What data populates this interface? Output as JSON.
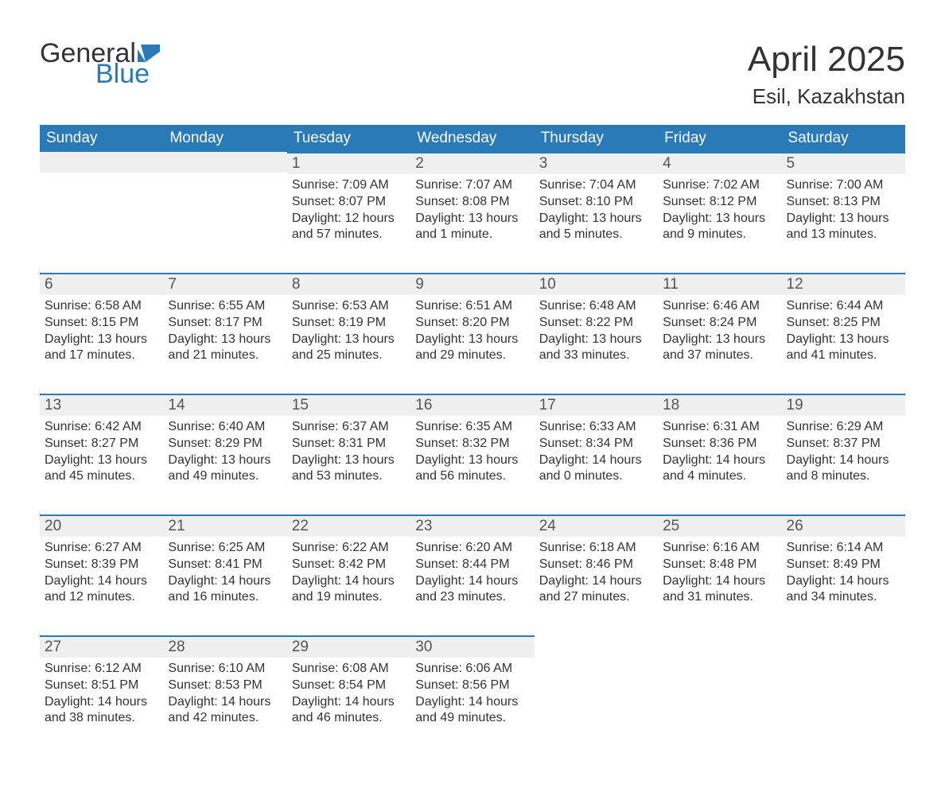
{
  "logo": {
    "general": "General",
    "blue": "Blue"
  },
  "title": "April 2025",
  "location": "Esil, Kazakhstan",
  "colors": {
    "header_bg": "#2a7ab8",
    "header_text": "#ffffff",
    "daynum_bg": "#efefef",
    "row_border": "#2a7ab8",
    "body_text": "#333333",
    "logo_blue": "#2a7ab8",
    "page_bg": "#ffffff"
  },
  "fonts": {
    "title_size": 44,
    "location_size": 26,
    "header_size": 19,
    "daynum_size": 19,
    "body_size": 16
  },
  "weekdays": [
    "Sunday",
    "Monday",
    "Tuesday",
    "Wednesday",
    "Thursday",
    "Friday",
    "Saturday"
  ],
  "weeks": [
    [
      null,
      null,
      {
        "n": "1",
        "sr": "Sunrise: 7:09 AM",
        "ss": "Sunset: 8:07 PM",
        "d1": "Daylight: 12 hours",
        "d2": "and 57 minutes."
      },
      {
        "n": "2",
        "sr": "Sunrise: 7:07 AM",
        "ss": "Sunset: 8:08 PM",
        "d1": "Daylight: 13 hours",
        "d2": "and 1 minute."
      },
      {
        "n": "3",
        "sr": "Sunrise: 7:04 AM",
        "ss": "Sunset: 8:10 PM",
        "d1": "Daylight: 13 hours",
        "d2": "and 5 minutes."
      },
      {
        "n": "4",
        "sr": "Sunrise: 7:02 AM",
        "ss": "Sunset: 8:12 PM",
        "d1": "Daylight: 13 hours",
        "d2": "and 9 minutes."
      },
      {
        "n": "5",
        "sr": "Sunrise: 7:00 AM",
        "ss": "Sunset: 8:13 PM",
        "d1": "Daylight: 13 hours",
        "d2": "and 13 minutes."
      }
    ],
    [
      {
        "n": "6",
        "sr": "Sunrise: 6:58 AM",
        "ss": "Sunset: 8:15 PM",
        "d1": "Daylight: 13 hours",
        "d2": "and 17 minutes."
      },
      {
        "n": "7",
        "sr": "Sunrise: 6:55 AM",
        "ss": "Sunset: 8:17 PM",
        "d1": "Daylight: 13 hours",
        "d2": "and 21 minutes."
      },
      {
        "n": "8",
        "sr": "Sunrise: 6:53 AM",
        "ss": "Sunset: 8:19 PM",
        "d1": "Daylight: 13 hours",
        "d2": "and 25 minutes."
      },
      {
        "n": "9",
        "sr": "Sunrise: 6:51 AM",
        "ss": "Sunset: 8:20 PM",
        "d1": "Daylight: 13 hours",
        "d2": "and 29 minutes."
      },
      {
        "n": "10",
        "sr": "Sunrise: 6:48 AM",
        "ss": "Sunset: 8:22 PM",
        "d1": "Daylight: 13 hours",
        "d2": "and 33 minutes."
      },
      {
        "n": "11",
        "sr": "Sunrise: 6:46 AM",
        "ss": "Sunset: 8:24 PM",
        "d1": "Daylight: 13 hours",
        "d2": "and 37 minutes."
      },
      {
        "n": "12",
        "sr": "Sunrise: 6:44 AM",
        "ss": "Sunset: 8:25 PM",
        "d1": "Daylight: 13 hours",
        "d2": "and 41 minutes."
      }
    ],
    [
      {
        "n": "13",
        "sr": "Sunrise: 6:42 AM",
        "ss": "Sunset: 8:27 PM",
        "d1": "Daylight: 13 hours",
        "d2": "and 45 minutes."
      },
      {
        "n": "14",
        "sr": "Sunrise: 6:40 AM",
        "ss": "Sunset: 8:29 PM",
        "d1": "Daylight: 13 hours",
        "d2": "and 49 minutes."
      },
      {
        "n": "15",
        "sr": "Sunrise: 6:37 AM",
        "ss": "Sunset: 8:31 PM",
        "d1": "Daylight: 13 hours",
        "d2": "and 53 minutes."
      },
      {
        "n": "16",
        "sr": "Sunrise: 6:35 AM",
        "ss": "Sunset: 8:32 PM",
        "d1": "Daylight: 13 hours",
        "d2": "and 56 minutes."
      },
      {
        "n": "17",
        "sr": "Sunrise: 6:33 AM",
        "ss": "Sunset: 8:34 PM",
        "d1": "Daylight: 14 hours",
        "d2": "and 0 minutes."
      },
      {
        "n": "18",
        "sr": "Sunrise: 6:31 AM",
        "ss": "Sunset: 8:36 PM",
        "d1": "Daylight: 14 hours",
        "d2": "and 4 minutes."
      },
      {
        "n": "19",
        "sr": "Sunrise: 6:29 AM",
        "ss": "Sunset: 8:37 PM",
        "d1": "Daylight: 14 hours",
        "d2": "and 8 minutes."
      }
    ],
    [
      {
        "n": "20",
        "sr": "Sunrise: 6:27 AM",
        "ss": "Sunset: 8:39 PM",
        "d1": "Daylight: 14 hours",
        "d2": "and 12 minutes."
      },
      {
        "n": "21",
        "sr": "Sunrise: 6:25 AM",
        "ss": "Sunset: 8:41 PM",
        "d1": "Daylight: 14 hours",
        "d2": "and 16 minutes."
      },
      {
        "n": "22",
        "sr": "Sunrise: 6:22 AM",
        "ss": "Sunset: 8:42 PM",
        "d1": "Daylight: 14 hours",
        "d2": "and 19 minutes."
      },
      {
        "n": "23",
        "sr": "Sunrise: 6:20 AM",
        "ss": "Sunset: 8:44 PM",
        "d1": "Daylight: 14 hours",
        "d2": "and 23 minutes."
      },
      {
        "n": "24",
        "sr": "Sunrise: 6:18 AM",
        "ss": "Sunset: 8:46 PM",
        "d1": "Daylight: 14 hours",
        "d2": "and 27 minutes."
      },
      {
        "n": "25",
        "sr": "Sunrise: 6:16 AM",
        "ss": "Sunset: 8:48 PM",
        "d1": "Daylight: 14 hours",
        "d2": "and 31 minutes."
      },
      {
        "n": "26",
        "sr": "Sunrise: 6:14 AM",
        "ss": "Sunset: 8:49 PM",
        "d1": "Daylight: 14 hours",
        "d2": "and 34 minutes."
      }
    ],
    [
      {
        "n": "27",
        "sr": "Sunrise: 6:12 AM",
        "ss": "Sunset: 8:51 PM",
        "d1": "Daylight: 14 hours",
        "d2": "and 38 minutes."
      },
      {
        "n": "28",
        "sr": "Sunrise: 6:10 AM",
        "ss": "Sunset: 8:53 PM",
        "d1": "Daylight: 14 hours",
        "d2": "and 42 minutes."
      },
      {
        "n": "29",
        "sr": "Sunrise: 6:08 AM",
        "ss": "Sunset: 8:54 PM",
        "d1": "Daylight: 14 hours",
        "d2": "and 46 minutes."
      },
      {
        "n": "30",
        "sr": "Sunrise: 6:06 AM",
        "ss": "Sunset: 8:56 PM",
        "d1": "Daylight: 14 hours",
        "d2": "and 49 minutes."
      },
      null,
      null,
      null
    ]
  ]
}
